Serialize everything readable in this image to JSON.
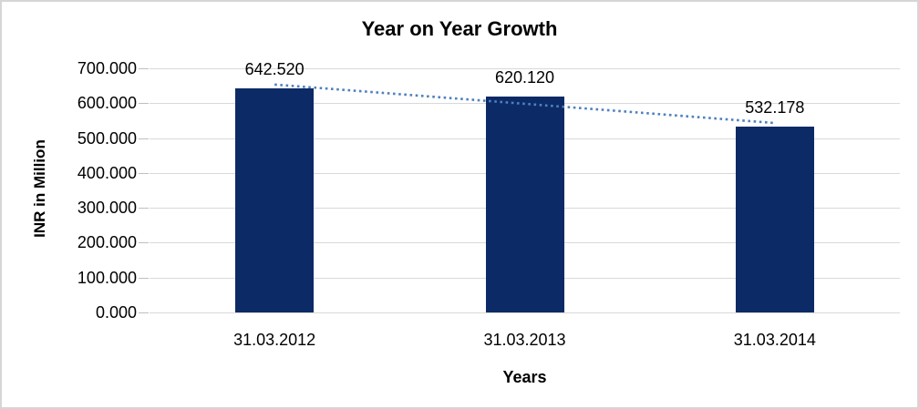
{
  "chart_data": {
    "type": "bar",
    "title": "Year on Year Growth",
    "xlabel": "Years",
    "ylabel": "INR in Million",
    "categories": [
      "31.03.2012",
      "31.03.2013",
      "31.03.2014"
    ],
    "values": [
      642.52,
      620.12,
      532.178
    ],
    "value_labels": [
      "642.520",
      "620.120",
      "532.178"
    ],
    "ylim": [
      0,
      700
    ],
    "ytick_step": 100,
    "ytick_labels": [
      "0.000",
      "100.000",
      "200.000",
      "300.000",
      "400.000",
      "500.000",
      "600.000",
      "700.000"
    ],
    "grid": "horizontal-gridlines",
    "legend": "none",
    "trendline": {
      "type": "linear",
      "style": "dotted"
    },
    "colors": {
      "bar": "#0C2A66",
      "trendline": "#4F81BD",
      "gridline": "#D9D9D9",
      "tick": "#BFBFBF",
      "text": "#000000",
      "background": "#FFFFFF",
      "border": "#D6D6D6"
    }
  }
}
